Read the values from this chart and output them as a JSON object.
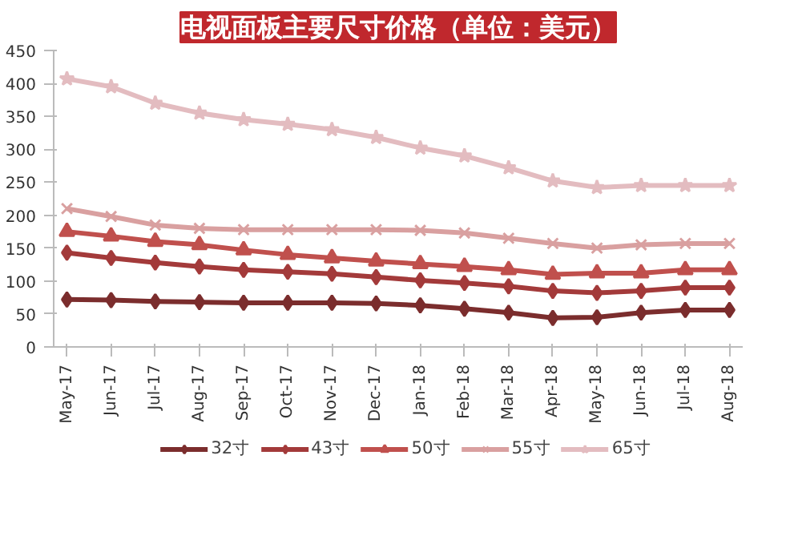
{
  "chart_data": {
    "type": "line",
    "title": "电视面板主要尺寸价格（单位：美元）",
    "categories": [
      "May-17",
      "Jun-17",
      "Jul-17",
      "Aug-17",
      "Sep-17",
      "Oct-17",
      "Nov-17",
      "Dec-17",
      "Jan-18",
      "Feb-18",
      "Mar-18",
      "Apr-18",
      "May-18",
      "Jun-18",
      "Jul-18",
      "Aug-18"
    ],
    "series": [
      {
        "name": "32寸",
        "color": "#7b2d2d",
        "marker": "diamond",
        "values": [
          72,
          71,
          69,
          68,
          67,
          67,
          67,
          66,
          63,
          58,
          52,
          44,
          45,
          52,
          56,
          56
        ]
      },
      {
        "name": "43寸",
        "color": "#a33a3a",
        "marker": "diamond",
        "values": [
          143,
          135,
          128,
          122,
          117,
          114,
          111,
          106,
          101,
          97,
          92,
          85,
          82,
          85,
          90,
          90
        ]
      },
      {
        "name": "50寸",
        "color": "#c0504d",
        "marker": "triangle",
        "values": [
          175,
          168,
          160,
          155,
          147,
          140,
          135,
          130,
          126,
          122,
          117,
          110,
          112,
          112,
          117,
          117
        ]
      },
      {
        "name": "55寸",
        "color": "#d9a0a0",
        "marker": "cross",
        "values": [
          210,
          198,
          185,
          180,
          178,
          178,
          178,
          178,
          177,
          173,
          165,
          157,
          150,
          155,
          157,
          157
        ]
      },
      {
        "name": "65寸",
        "color": "#e3bcc0",
        "marker": "star",
        "values": [
          407,
          395,
          370,
          355,
          345,
          338,
          330,
          318,
          302,
          290,
          272,
          252,
          242,
          245,
          245,
          245
        ]
      }
    ],
    "ylim": [
      0,
      450
    ],
    "yticks": [
      0,
      50,
      100,
      150,
      200,
      250,
      300,
      350,
      400,
      450
    ],
    "grid": false,
    "legend": "bottom",
    "line_style": "solid"
  }
}
